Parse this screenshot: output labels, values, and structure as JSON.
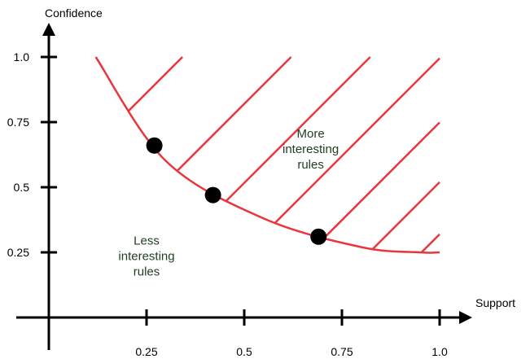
{
  "chart_data": {
    "type": "scatter",
    "xlabel": "Support",
    "ylabel": "Confidence",
    "xlim": [
      0,
      1.0
    ],
    "ylim": [
      0,
      1.0
    ],
    "xticks": [
      {
        "value": 0.25,
        "label": "0.25"
      },
      {
        "value": 0.5,
        "label": "0.5"
      },
      {
        "value": 0.75,
        "label": "0.75"
      },
      {
        "value": 1.0,
        "label": "1.0"
      }
    ],
    "yticks": [
      {
        "value": 0.25,
        "label": "0.25"
      },
      {
        "value": 0.5,
        "label": "0.5"
      },
      {
        "value": 0.75,
        "label": "0.75"
      },
      {
        "value": 1.0,
        "label": "1.0"
      }
    ],
    "points": [
      {
        "x": 0.27,
        "y": 0.66
      },
      {
        "x": 0.42,
        "y": 0.47
      },
      {
        "x": 0.69,
        "y": 0.31
      }
    ],
    "boundary_curve": [
      {
        "x": 0.12,
        "y": 1.0
      },
      {
        "x": 0.3,
        "y": 0.6
      },
      {
        "x": 0.55,
        "y": 0.38
      },
      {
        "x": 0.8,
        "y": 0.27
      },
      {
        "x": 0.95,
        "y": 0.25
      },
      {
        "x": 1.0,
        "y": 0.25
      }
    ],
    "annotations": [
      {
        "lines": [
          "More",
          "interesting",
          "rules"
        ],
        "x": 0.67,
        "y": 0.69
      },
      {
        "lines": [
          "Less",
          "interesting",
          "rules"
        ],
        "x": 0.25,
        "y": 0.28
      }
    ],
    "colors": {
      "axis": "#000000",
      "curve": "#e8353e",
      "hatch": "#e8353e",
      "points": "#000000",
      "annotation": "#1f3d1f"
    }
  }
}
